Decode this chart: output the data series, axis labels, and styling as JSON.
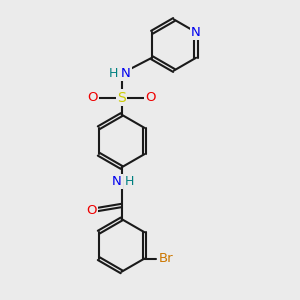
{
  "bg_color": "#ebebeb",
  "bond_color": "#1a1a1a",
  "atom_colors": {
    "N": "#0000ee",
    "O": "#ee0000",
    "S": "#cccc00",
    "Br": "#cc7700",
    "C": "#1a1a1a",
    "H_label": "#008080"
  },
  "bond_width": 1.5,
  "dbo": 0.055,
  "font_size": 9.5
}
